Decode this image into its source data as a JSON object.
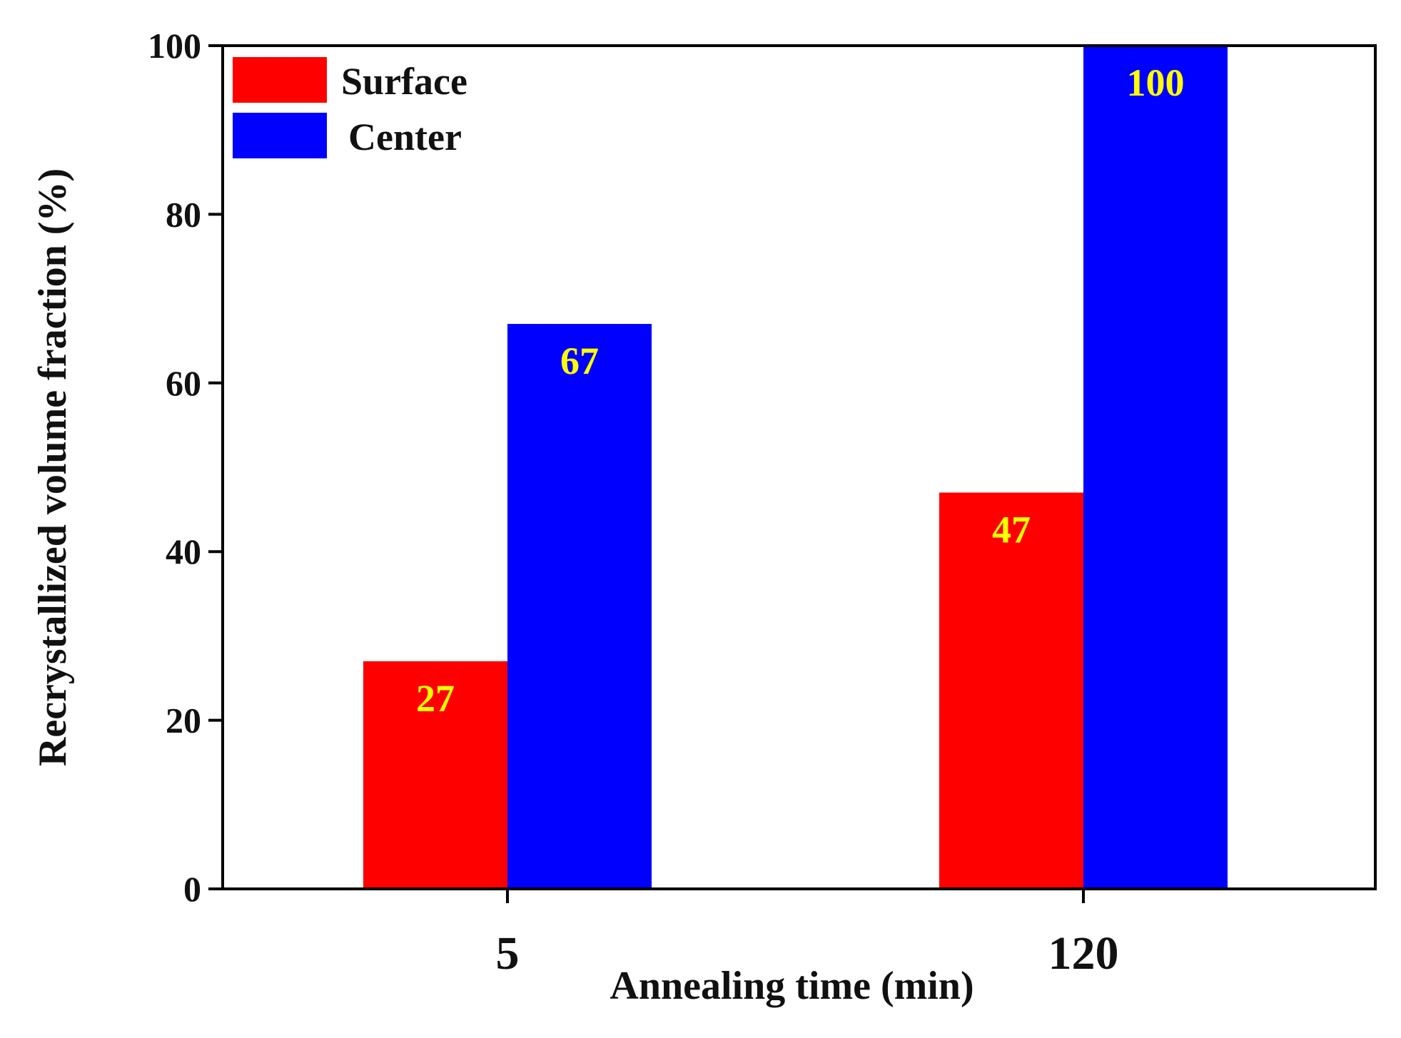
{
  "chart_data": {
    "type": "bar",
    "categories": [
      "5",
      "120"
    ],
    "series": [
      {
        "name": "Surface",
        "values": [
          27,
          47
        ],
        "color": "#ff0000"
      },
      {
        "name": "Center",
        "values": [
          67,
          100
        ],
        "color": "#0000ff"
      }
    ],
    "data_labels": [
      [
        "27",
        "47"
      ],
      [
        "67",
        "100"
      ]
    ],
    "data_label_color": "#ffff00",
    "xlabel": "Annealing time (min)",
    "ylabel": "Recrystallized volume fraction (%)",
    "ylim": [
      0,
      100
    ],
    "yticks": [
      0,
      20,
      40,
      60,
      80,
      100
    ],
    "ytick_labels": [
      "0",
      "20",
      "40",
      "60",
      "80",
      "100"
    ],
    "legend_position": "top-left",
    "grid": false
  }
}
